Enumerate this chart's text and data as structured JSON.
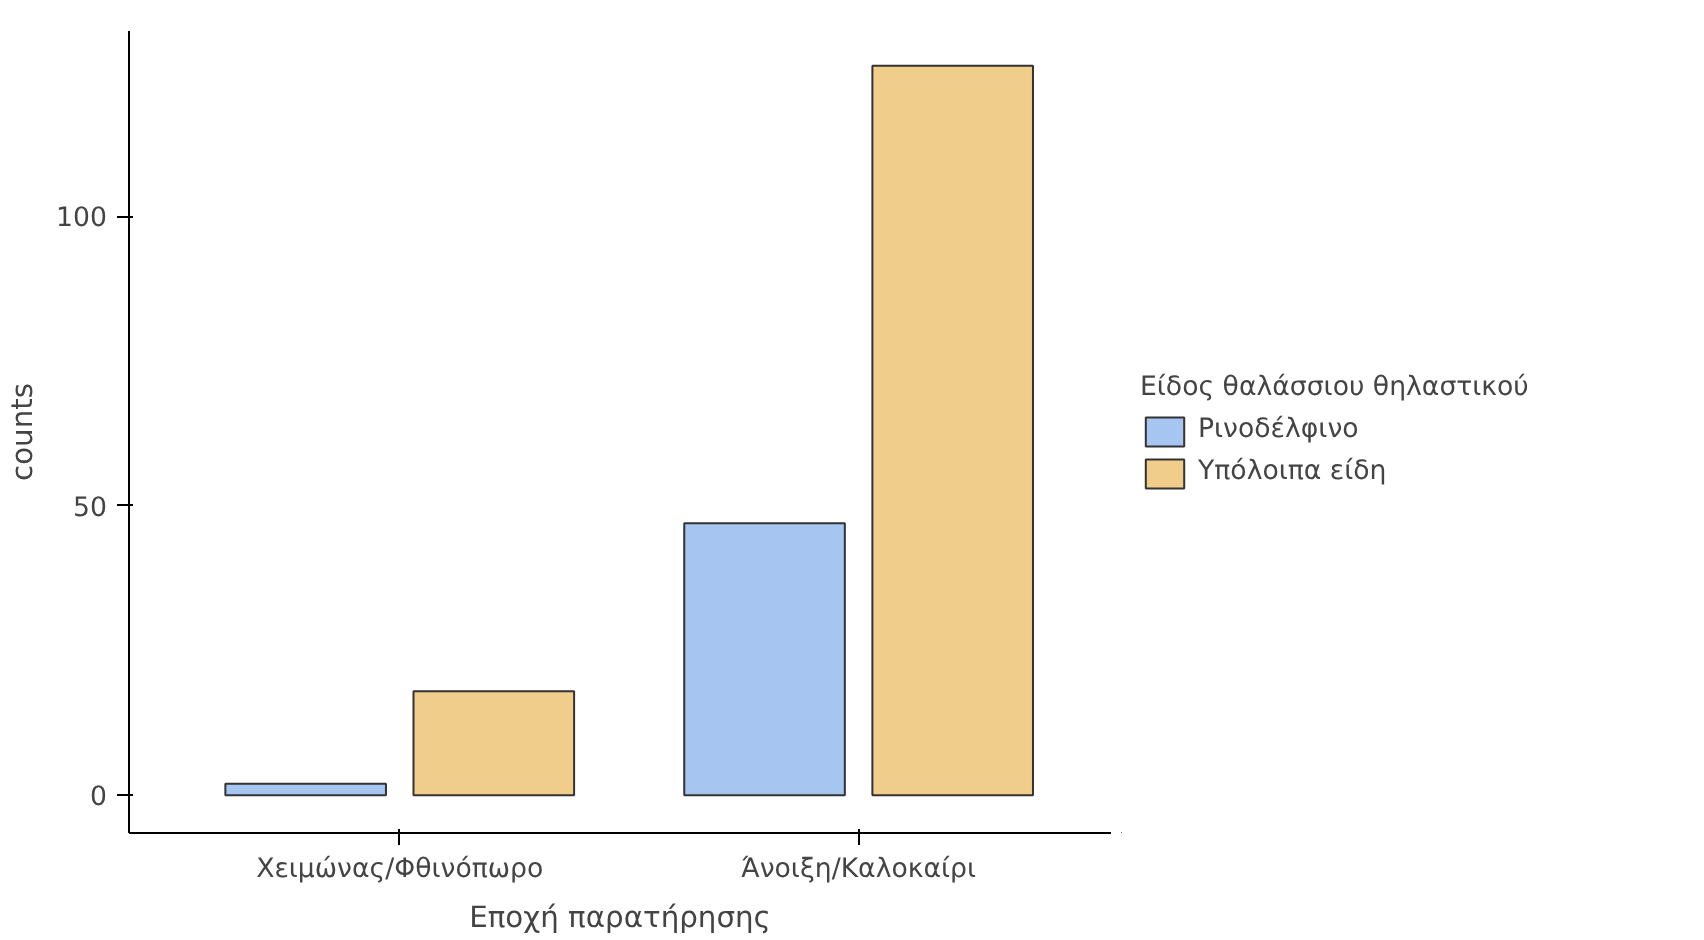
{
  "chart_data": {
    "type": "bar",
    "xlabel": "Εποχή παρατήρησης",
    "ylabel": "counts",
    "legend_title": "Είδος θαλάσσιου θηλαστικού",
    "categories": [
      "Χειμώνας/Φθινόπωρο",
      "Άνοιξη/Καλοκαίρι"
    ],
    "series": [
      {
        "name": "Ρινοδέλφινο",
        "color": "#a6c5f0",
        "values": [
          2,
          47
        ]
      },
      {
        "name": "Υπόλοιπα είδη",
        "color": "#f0cd8a",
        "values": [
          18,
          126
        ]
      }
    ],
    "ylim": [
      -6.5,
      132
    ],
    "yticks": [
      0,
      50,
      100
    ],
    "grid": false,
    "legend": "right"
  }
}
